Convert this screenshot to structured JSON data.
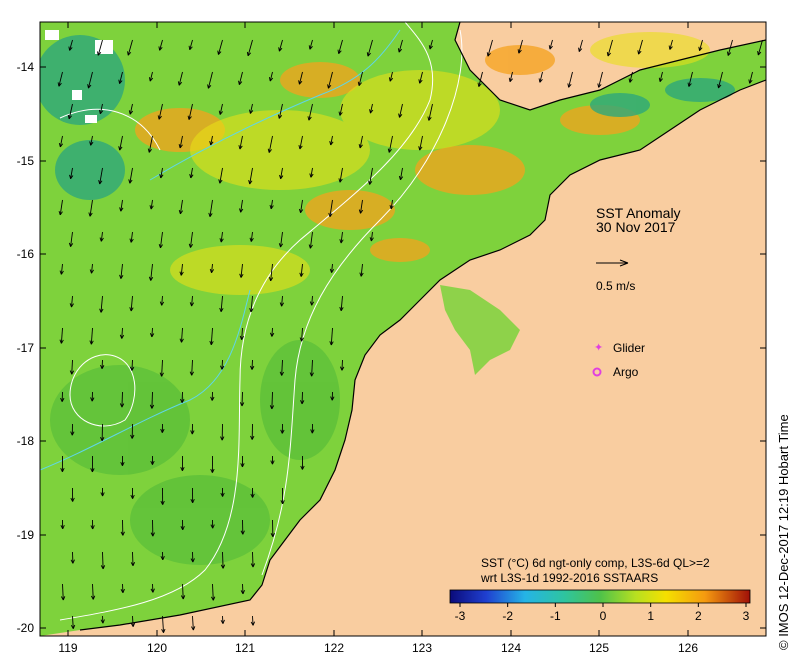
{
  "title": {
    "line1": "SST Anomaly",
    "line2": "30 Nov 2017"
  },
  "scale_label": "0.5 m/s",
  "legend": {
    "glider": "Glider",
    "argo": "Argo"
  },
  "source_note": {
    "line1": "SST (°C) 6d ngt-only comp, L3S-6d QL>=2",
    "line2": "wrt L3S-1d 1992-2016 SSTAARS"
  },
  "colorbar": {
    "ticks": [
      "-3",
      "-2",
      "-1",
      "0",
      "1",
      "2",
      "3"
    ],
    "min": -3,
    "max": 3
  },
  "axes": {
    "lon_ticks": [
      "119",
      "120",
      "121",
      "122",
      "123",
      "124",
      "125",
      "126"
    ],
    "lat_ticks": [
      "-14",
      "-15",
      "-16",
      "-17",
      "-18",
      "-19",
      "-20"
    ]
  },
  "credit": "©  IMOS 12-Dec-2017 12:19 Hobart Time",
  "colors": {
    "land": "#f9cda0",
    "ocean_base": "#7ed23c",
    "warm": "#f5a21c",
    "cool": "#2ea87a",
    "contour": "#ffffff",
    "current_contour": "#5fd6e8",
    "glider": "#e040e0"
  }
}
